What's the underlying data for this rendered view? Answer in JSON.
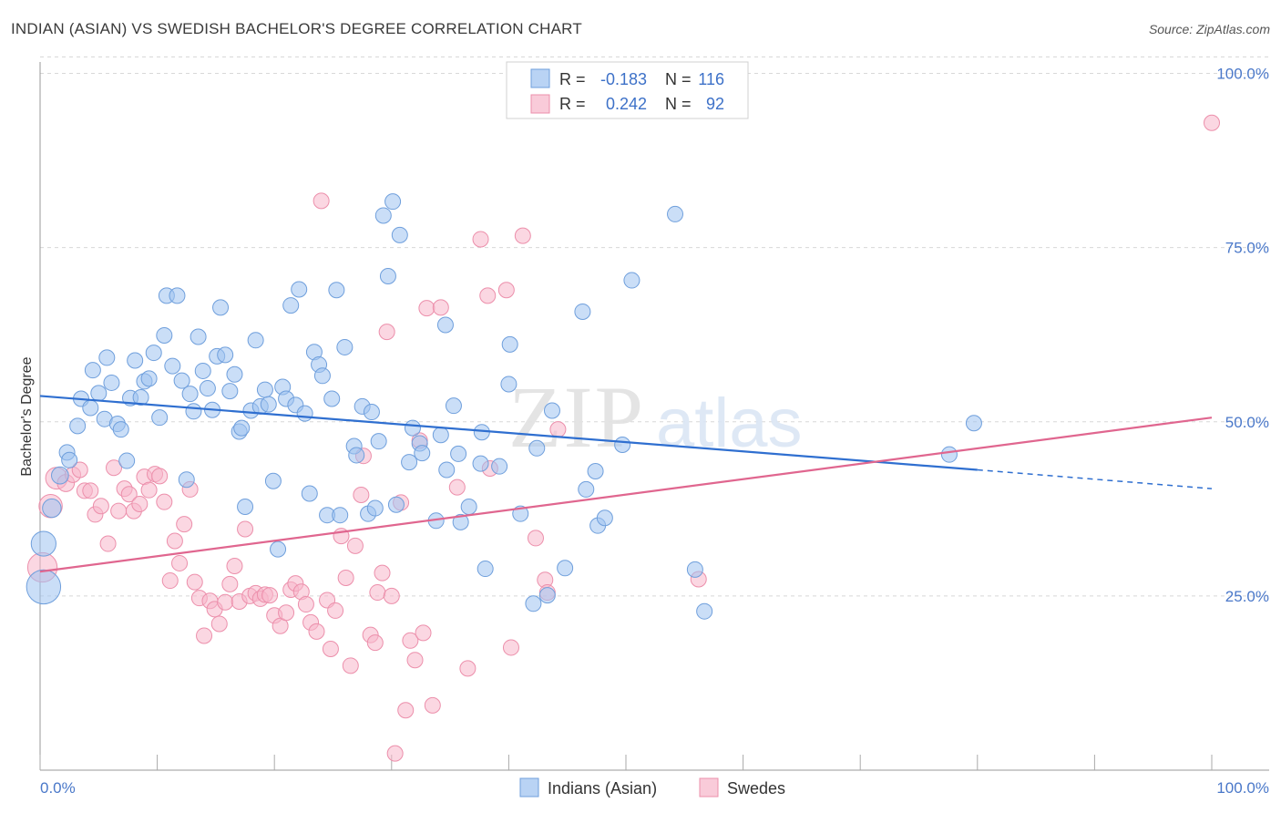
{
  "title": "INDIAN (ASIAN) VS SWEDISH BACHELOR'S DEGREE CORRELATION CHART",
  "source": "Source: ZipAtlas.com",
  "watermark": {
    "part1": "ZIP",
    "part2": "atlas"
  },
  "colors": {
    "blue_fill": "#9ec3f0",
    "blue_stroke": "#6f9fdc",
    "blue_line": "#2f6fd0",
    "pink_fill": "#f7b7cb",
    "pink_stroke": "#ec8fab",
    "pink_line": "#e0668f",
    "grid": "#d8d8d8",
    "tick_text": "#4a78c9"
  },
  "chart_data": {
    "type": "scatter",
    "title": "INDIAN (ASIAN) VS SWEDISH BACHELOR'S DEGREE CORRELATION CHART",
    "xlabel": "",
    "ylabel": "Bachelor's Degree",
    "xlim": [
      0,
      100
    ],
    "ylim": [
      0,
      105
    ],
    "x_tick_labels": {
      "min": "0.0%",
      "max": "100.0%"
    },
    "y_ticks": [
      {
        "value": 25,
        "label": "25.0%"
      },
      {
        "value": 50,
        "label": "50.0%"
      },
      {
        "value": 75,
        "label": "75.0%"
      },
      {
        "value": 100,
        "label": "100.0%"
      }
    ],
    "legend_stats": [
      {
        "r_label": "R =",
        "r_value": "-0.183",
        "n_label": "N =",
        "n_value": "116"
      },
      {
        "r_label": "R =",
        "r_value": "0.242",
        "n_label": "N =",
        "n_value": "92"
      }
    ],
    "series": [
      {
        "name": "Indians (Asian)",
        "color": "blue",
        "trend": {
          "x0": 0,
          "y0": 53.7,
          "x1": 80,
          "y1": 43.1,
          "dash_to_x": 100,
          "dash_to_y": 40.4
        },
        "points": [
          [
            0.3,
            26.3,
            2.2
          ],
          [
            0.3,
            32.5,
            1.6
          ],
          [
            1.0,
            37.6,
            1.2
          ],
          [
            1.7,
            42.3,
            1.1
          ],
          [
            2.3,
            45.6,
            1.0
          ],
          [
            2.5,
            44.5,
            1.0
          ],
          [
            3.2,
            49.4,
            1.0
          ],
          [
            3.5,
            53.3,
            1.0
          ],
          [
            4.3,
            52.0,
            1.0
          ],
          [
            4.5,
            57.4,
            1.0
          ],
          [
            5.0,
            54.1,
            1.0
          ],
          [
            5.5,
            50.4,
            1.0
          ],
          [
            5.7,
            59.2,
            1.0
          ],
          [
            6.1,
            55.6,
            1.0
          ],
          [
            6.6,
            49.7,
            1.0
          ],
          [
            6.9,
            48.9,
            1.0
          ],
          [
            7.4,
            44.4,
            1.0
          ],
          [
            7.7,
            53.4,
            1.0
          ],
          [
            8.1,
            58.8,
            1.0
          ],
          [
            8.6,
            53.5,
            1.0
          ],
          [
            8.9,
            55.8,
            1.0
          ],
          [
            9.3,
            56.2,
            1.0
          ],
          [
            9.7,
            59.9,
            1.0
          ],
          [
            10.2,
            50.6,
            1.0
          ],
          [
            10.6,
            62.4,
            1.0
          ],
          [
            10.8,
            68.1,
            1.0
          ],
          [
            11.3,
            58.0,
            1.0
          ],
          [
            11.7,
            68.1,
            1.0
          ],
          [
            12.1,
            55.9,
            1.0
          ],
          [
            12.5,
            41.7,
            1.0
          ],
          [
            12.8,
            54.0,
            1.0
          ],
          [
            13.1,
            51.5,
            1.0
          ],
          [
            13.5,
            62.2,
            1.0
          ],
          [
            13.9,
            57.3,
            1.0
          ],
          [
            14.3,
            54.8,
            1.0
          ],
          [
            14.7,
            51.7,
            1.0
          ],
          [
            15.1,
            59.4,
            1.0
          ],
          [
            15.4,
            66.4,
            1.0
          ],
          [
            15.8,
            59.6,
            1.0
          ],
          [
            16.2,
            54.4,
            1.0
          ],
          [
            16.6,
            56.8,
            1.0
          ],
          [
            17.0,
            48.6,
            1.0
          ],
          [
            17.2,
            49.1,
            1.0
          ],
          [
            17.5,
            37.8,
            1.0
          ],
          [
            18.0,
            51.6,
            1.0
          ],
          [
            18.4,
            61.7,
            1.0
          ],
          [
            18.8,
            52.2,
            1.0
          ],
          [
            19.2,
            54.6,
            1.0
          ],
          [
            19.5,
            52.5,
            1.0
          ],
          [
            19.9,
            41.5,
            1.0
          ],
          [
            20.3,
            31.7,
            1.0
          ],
          [
            20.7,
            55.0,
            1.0
          ],
          [
            21.0,
            53.3,
            1.0
          ],
          [
            21.4,
            66.7,
            1.0
          ],
          [
            21.8,
            52.4,
            1.0
          ],
          [
            22.1,
            69.0,
            1.0
          ],
          [
            22.6,
            51.2,
            1.0
          ],
          [
            23.0,
            39.7,
            1.0
          ],
          [
            23.4,
            60.0,
            1.0
          ],
          [
            23.8,
            58.2,
            1.0
          ],
          [
            24.1,
            56.6,
            1.0
          ],
          [
            24.5,
            36.6,
            1.0
          ],
          [
            24.9,
            53.3,
            1.0
          ],
          [
            25.3,
            68.9,
            1.0
          ],
          [
            25.6,
            36.6,
            1.0
          ],
          [
            26.0,
            60.7,
            1.0
          ],
          [
            26.8,
            46.5,
            1.0
          ],
          [
            27.0,
            45.2,
            1.0
          ],
          [
            27.5,
            52.2,
            1.0
          ],
          [
            28.0,
            36.8,
            1.0
          ],
          [
            28.3,
            51.4,
            1.0
          ],
          [
            28.6,
            37.6,
            1.0
          ],
          [
            28.9,
            47.2,
            1.0
          ],
          [
            29.3,
            79.6,
            1.0
          ],
          [
            29.7,
            70.9,
            1.0
          ],
          [
            30.1,
            81.6,
            1.0
          ],
          [
            30.4,
            38.1,
            1.0
          ],
          [
            30.7,
            76.8,
            1.0
          ],
          [
            31.5,
            44.2,
            1.0
          ],
          [
            31.8,
            49.1,
            1.0
          ],
          [
            32.4,
            46.9,
            1.0
          ],
          [
            32.6,
            45.5,
            1.0
          ],
          [
            33.8,
            35.8,
            1.0
          ],
          [
            34.2,
            48.1,
            1.0
          ],
          [
            34.6,
            63.9,
            1.0
          ],
          [
            34.7,
            43.1,
            1.0
          ],
          [
            35.3,
            52.3,
            1.0
          ],
          [
            35.7,
            45.4,
            1.0
          ],
          [
            35.9,
            35.6,
            1.0
          ],
          [
            36.6,
            37.8,
            1.0
          ],
          [
            37.6,
            44.0,
            1.0
          ],
          [
            37.7,
            48.5,
            1.0
          ],
          [
            38.0,
            28.9,
            1.0
          ],
          [
            39.2,
            43.6,
            1.0
          ],
          [
            40.0,
            55.4,
            1.0
          ],
          [
            40.1,
            61.1,
            1.0
          ],
          [
            41.0,
            36.8,
            1.0
          ],
          [
            42.1,
            23.9,
            1.0
          ],
          [
            42.4,
            46.2,
            1.0
          ],
          [
            43.3,
            25.1,
            1.0
          ],
          [
            43.7,
            51.6,
            1.0
          ],
          [
            44.8,
            29.0,
            1.0
          ],
          [
            46.3,
            65.8,
            1.0
          ],
          [
            46.6,
            40.3,
            1.0
          ],
          [
            47.4,
            42.9,
            1.0
          ],
          [
            47.6,
            35.1,
            1.0
          ],
          [
            48.2,
            36.2,
            1.0
          ],
          [
            49.7,
            46.7,
            1.0
          ],
          [
            50.5,
            70.3,
            1.0
          ],
          [
            54.2,
            79.8,
            1.0
          ],
          [
            55.9,
            28.8,
            1.0
          ],
          [
            56.7,
            22.8,
            1.0
          ],
          [
            77.6,
            45.3,
            1.0
          ],
          [
            79.7,
            49.8,
            1.0
          ]
        ]
      },
      {
        "name": "Swedes",
        "color": "pink",
        "trend": {
          "x0": 0,
          "y0": 28.5,
          "x1": 100,
          "y1": 50.6
        },
        "points": [
          [
            0.2,
            29.1,
            1.9
          ],
          [
            0.9,
            37.9,
            1.5
          ],
          [
            1.4,
            41.9,
            1.4
          ],
          [
            2.2,
            41.2,
            1.1
          ],
          [
            2.8,
            42.4,
            1.0
          ],
          [
            3.4,
            43.1,
            1.0
          ],
          [
            3.8,
            40.1,
            1.0
          ],
          [
            4.3,
            40.1,
            1.0
          ],
          [
            4.7,
            36.7,
            1.0
          ],
          [
            5.2,
            37.9,
            1.0
          ],
          [
            5.8,
            32.5,
            1.0
          ],
          [
            6.3,
            43.4,
            1.0
          ],
          [
            6.7,
            37.2,
            1.0
          ],
          [
            7.2,
            40.4,
            1.0
          ],
          [
            7.6,
            39.6,
            1.0
          ],
          [
            8.0,
            37.2,
            1.0
          ],
          [
            8.5,
            38.2,
            1.0
          ],
          [
            8.9,
            42.1,
            1.0
          ],
          [
            9.3,
            40.2,
            1.0
          ],
          [
            9.8,
            42.5,
            1.0
          ],
          [
            10.2,
            42.2,
            1.0
          ],
          [
            10.6,
            38.5,
            1.0
          ],
          [
            11.1,
            27.2,
            1.0
          ],
          [
            11.5,
            32.9,
            1.0
          ],
          [
            11.9,
            29.7,
            1.0
          ],
          [
            12.3,
            35.3,
            1.0
          ],
          [
            12.8,
            40.3,
            1.0
          ],
          [
            13.2,
            27.0,
            1.0
          ],
          [
            13.6,
            24.7,
            1.0
          ],
          [
            14.0,
            19.3,
            1.0
          ],
          [
            14.5,
            24.3,
            1.0
          ],
          [
            14.9,
            23.1,
            1.0
          ],
          [
            15.3,
            21.0,
            1.0
          ],
          [
            15.8,
            24.1,
            1.0
          ],
          [
            16.2,
            26.7,
            1.0
          ],
          [
            16.6,
            29.3,
            1.0
          ],
          [
            17.0,
            24.2,
            1.0
          ],
          [
            17.5,
            34.6,
            1.0
          ],
          [
            17.9,
            25.0,
            1.0
          ],
          [
            18.4,
            25.4,
            1.0
          ],
          [
            18.8,
            24.6,
            1.0
          ],
          [
            19.2,
            25.2,
            1.0
          ],
          [
            19.6,
            25.1,
            1.0
          ],
          [
            20.0,
            22.2,
            1.0
          ],
          [
            20.5,
            20.7,
            1.0
          ],
          [
            21.0,
            22.6,
            1.0
          ],
          [
            21.4,
            25.9,
            1.0
          ],
          [
            21.8,
            26.8,
            1.0
          ],
          [
            22.3,
            25.6,
            1.0
          ],
          [
            22.7,
            23.8,
            1.0
          ],
          [
            23.1,
            21.2,
            1.0
          ],
          [
            23.6,
            19.9,
            1.0
          ],
          [
            24.0,
            81.7,
            1.0
          ],
          [
            24.5,
            24.4,
            1.0
          ],
          [
            24.8,
            17.4,
            1.0
          ],
          [
            25.2,
            22.9,
            1.0
          ],
          [
            25.7,
            33.6,
            1.0
          ],
          [
            26.1,
            27.6,
            1.0
          ],
          [
            26.5,
            15.0,
            1.0
          ],
          [
            26.9,
            32.2,
            1.0
          ],
          [
            27.4,
            39.5,
            1.0
          ],
          [
            27.6,
            45.1,
            1.0
          ],
          [
            28.2,
            19.4,
            1.0
          ],
          [
            28.6,
            18.3,
            1.0
          ],
          [
            28.8,
            25.5,
            1.0
          ],
          [
            29.2,
            28.3,
            1.0
          ],
          [
            29.6,
            62.9,
            1.0
          ],
          [
            30.0,
            25.0,
            1.0
          ],
          [
            30.3,
            2.4,
            1.0
          ],
          [
            30.8,
            38.4,
            1.0
          ],
          [
            31.2,
            8.6,
            1.0
          ],
          [
            31.6,
            18.6,
            1.0
          ],
          [
            32.0,
            15.8,
            1.0
          ],
          [
            32.4,
            47.3,
            1.0
          ],
          [
            32.7,
            19.7,
            1.0
          ],
          [
            33.0,
            66.3,
            1.0
          ],
          [
            33.5,
            9.3,
            1.0
          ],
          [
            34.2,
            66.4,
            1.0
          ],
          [
            35.6,
            40.6,
            1.0
          ],
          [
            36.5,
            14.6,
            1.0
          ],
          [
            37.6,
            76.2,
            1.0
          ],
          [
            38.2,
            68.1,
            1.0
          ],
          [
            38.4,
            43.3,
            1.0
          ],
          [
            39.8,
            68.9,
            1.0
          ],
          [
            40.2,
            17.6,
            1.0
          ],
          [
            41.2,
            76.7,
            1.0
          ],
          [
            42.3,
            33.3,
            1.0
          ],
          [
            43.1,
            27.3,
            1.0
          ],
          [
            43.3,
            25.5,
            1.0
          ],
          [
            44.2,
            48.9,
            1.0
          ],
          [
            56.2,
            27.4,
            1.0
          ],
          [
            100.0,
            92.9,
            1.0
          ]
        ]
      }
    ]
  }
}
